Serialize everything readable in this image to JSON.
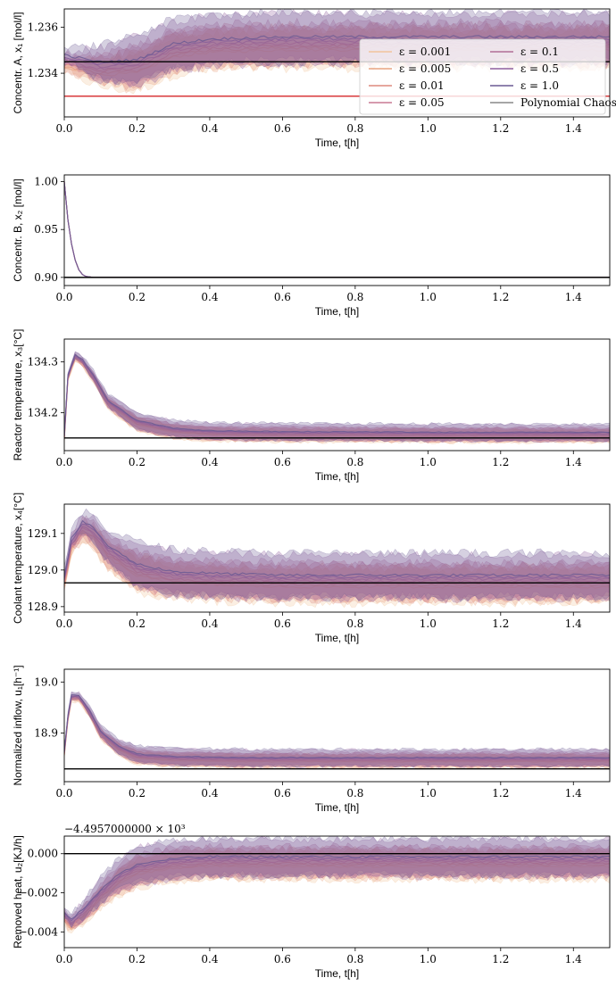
{
  "chart_data": [
    {
      "type": "area",
      "ylabel": "Concentr. A, x₁ [mol/l]",
      "xlabel": "Time, t[h]",
      "xlim": [
        0,
        1.5
      ],
      "ylim": [
        1.2321,
        1.2368
      ],
      "yticks": [
        "1.234",
        "1.236"
      ],
      "xticks": [
        "0.0",
        "0.2",
        "0.4",
        "0.6",
        "0.8",
        "1.0",
        "1.2",
        "1.4"
      ],
      "reference_lines": [
        {
          "y": 1.2345,
          "color": "#000000"
        },
        {
          "y": 1.233,
          "color": "#d62728"
        }
      ],
      "mean_profile": {
        "t": [
          0,
          0.1,
          0.2,
          0.3,
          0.4,
          0.6,
          0.8,
          1.0,
          1.2,
          1.5
        ],
        "y": [
          1.2345,
          1.2342,
          1.2343,
          1.235,
          1.2352,
          1.2353,
          1.2353,
          1.2353,
          1.2353,
          1.2353
        ]
      },
      "band_halfwidth": 0.0008
    },
    {
      "type": "line",
      "ylabel": "Concentr. B, x₂ [mol/l]",
      "xlabel": "Time, t[h]",
      "xlim": [
        0,
        1.5
      ],
      "ylim": [
        0.8915,
        1.007
      ],
      "yticks": [
        "0.90",
        "0.95",
        "1.00"
      ],
      "xticks": [
        "0.0",
        "0.2",
        "0.4",
        "0.6",
        "0.8",
        "1.0",
        "1.2",
        "1.4"
      ],
      "reference_lines": [
        {
          "y": 0.9,
          "color": "#000000"
        }
      ],
      "mean_profile": {
        "t": [
          0,
          0.01,
          0.02,
          0.03,
          0.04,
          0.05,
          0.06,
          0.08,
          1.5
        ],
        "y": [
          1.0,
          0.96,
          0.935,
          0.918,
          0.908,
          0.903,
          0.901,
          0.9,
          0.9
        ]
      },
      "band_halfwidth": 0.0
    },
    {
      "type": "area",
      "ylabel": "Reactor temperature, x₃[°C]",
      "xlabel": "Time, t[h]",
      "xlim": [
        0,
        1.5
      ],
      "ylim": [
        134.125,
        134.345
      ],
      "yticks": [
        "134.2",
        "134.3"
      ],
      "xticks": [
        "0.0",
        "0.2",
        "0.4",
        "0.6",
        "0.8",
        "1.0",
        "1.2",
        "1.4"
      ],
      "reference_lines": [
        {
          "y": 134.15,
          "color": "#000000"
        }
      ],
      "mean_profile": {
        "t": [
          0,
          0.01,
          0.03,
          0.05,
          0.08,
          0.12,
          0.2,
          0.3,
          0.4,
          0.6,
          0.8,
          1.0,
          1.2,
          1.5
        ],
        "y": [
          134.15,
          134.27,
          134.31,
          134.3,
          134.27,
          134.22,
          134.18,
          134.165,
          134.16,
          134.158,
          134.158,
          134.157,
          134.157,
          134.157
        ]
      },
      "band_halfwidth": 0.012
    },
    {
      "type": "area",
      "ylabel": "Coolant temperature, x₄[°C]",
      "xlabel": "Time, t[h]",
      "xlim": [
        0,
        1.5
      ],
      "ylim": [
        128.885,
        129.18
      ],
      "yticks": [
        "128.9",
        "129.0",
        "129.1"
      ],
      "xticks": [
        "0.0",
        "0.2",
        "0.4",
        "0.6",
        "0.8",
        "1.0",
        "1.2",
        "1.4"
      ],
      "reference_lines": [
        {
          "y": 128.965,
          "color": "#000000"
        }
      ],
      "mean_profile": {
        "t": [
          0,
          0.02,
          0.05,
          0.08,
          0.12,
          0.2,
          0.3,
          0.4,
          0.6,
          0.8,
          1.0,
          1.2,
          1.5
        ],
        "y": [
          128.97,
          129.07,
          129.115,
          129.1,
          129.05,
          129.0,
          128.98,
          128.975,
          128.97,
          128.97,
          128.97,
          128.97,
          128.97
        ]
      },
      "band_halfwidth": 0.045
    },
    {
      "type": "area",
      "ylabel": "Normalized inflow, u₁[h⁻¹]",
      "xlabel": "Time, t[h]",
      "xlim": [
        0,
        1.5
      ],
      "ylim": [
        18.805,
        19.025
      ],
      "yticks": [
        "18.9",
        "19.0"
      ],
      "xticks": [
        "0.0",
        "0.2",
        "0.4",
        "0.6",
        "0.8",
        "1.0",
        "1.2",
        "1.4"
      ],
      "reference_lines": [
        {
          "y": 18.83,
          "color": "#000000"
        }
      ],
      "mean_profile": {
        "t": [
          0,
          0.01,
          0.02,
          0.04,
          0.07,
          0.1,
          0.15,
          0.2,
          0.3,
          0.5,
          0.8,
          1.0,
          1.2,
          1.5
        ],
        "y": [
          18.86,
          18.93,
          18.97,
          18.97,
          18.94,
          18.9,
          18.87,
          18.855,
          18.85,
          18.848,
          18.848,
          18.848,
          18.848,
          18.848
        ]
      },
      "band_halfwidth": 0.012
    },
    {
      "type": "area",
      "ylabel": "Removed heat, u₂[KJ/h]",
      "xlabel": "Time, t[h]",
      "offset_label": "−4.4957000000 × 10³",
      "xlim": [
        0,
        1.5
      ],
      "ylim": [
        -0.0048,
        0.0009
      ],
      "yticks": [
        "0.000",
        "−0.002",
        "−0.004"
      ],
      "xticks": [
        "0.0",
        "0.2",
        "0.4",
        "0.6",
        "0.8",
        "1.0",
        "1.2",
        "1.4"
      ],
      "reference_lines": [
        {
          "y": 0.0,
          "color": "#000000"
        }
      ],
      "mean_profile": {
        "t": [
          0,
          0.02,
          0.05,
          0.1,
          0.15,
          0.2,
          0.3,
          0.4,
          0.6,
          0.8,
          1.0,
          1.2,
          1.5
        ],
        "y": [
          -0.0032,
          -0.0036,
          -0.0031,
          -0.0021,
          -0.0013,
          -0.0008,
          -0.0005,
          -0.0004,
          -0.0004,
          -0.0004,
          -0.0004,
          -0.0004,
          -0.0004
        ]
      },
      "band_halfwidth": 0.0007
    }
  ],
  "legend": [
    {
      "label": "ε = 0.001",
      "color": "#f2c49b"
    },
    {
      "label": "ε = 0.005",
      "color": "#e8a380"
    },
    {
      "label": "ε = 0.01",
      "color": "#dd8a7f"
    },
    {
      "label": "ε = 0.05",
      "color": "#c97893"
    },
    {
      "label": "ε = 0.1",
      "color": "#b06e97"
    },
    {
      "label": "ε = 0.5",
      "color": "#8e5f9e"
    },
    {
      "label": "ε = 1.0",
      "color": "#6a5a93"
    },
    {
      "label": "Polynomial Chaos",
      "color": "#888888"
    }
  ],
  "series_colors": [
    "#f2c49b",
    "#e8a380",
    "#dd8a7f",
    "#c97893",
    "#b06e97",
    "#8e5f9e",
    "#6a5a93"
  ]
}
